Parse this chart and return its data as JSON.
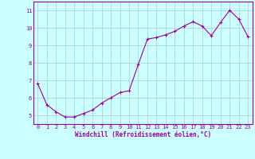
{
  "x": [
    0,
    1,
    2,
    3,
    4,
    5,
    6,
    7,
    8,
    9,
    10,
    11,
    12,
    13,
    14,
    15,
    16,
    17,
    18,
    19,
    20,
    21,
    22,
    23
  ],
  "y": [
    6.8,
    5.6,
    5.2,
    4.9,
    4.9,
    5.1,
    5.3,
    5.7,
    6.0,
    6.3,
    6.4,
    7.9,
    9.35,
    9.45,
    9.6,
    9.8,
    10.1,
    10.35,
    10.1,
    9.55,
    10.3,
    11.0,
    10.5,
    9.5
  ],
  "line_color": "#990099",
  "marker": "+",
  "marker_size": 3.5,
  "marker_linewidth": 0.8,
  "background_color": "#ccffff",
  "grid_color": "#aacccc",
  "xlabel": "Windchill (Refroidissement éolien,°C)",
  "ylim": [
    4.5,
    11.5
  ],
  "xlim": [
    -0.5,
    23.5
  ],
  "yticks": [
    5,
    6,
    7,
    8,
    9,
    10,
    11
  ],
  "xticks": [
    0,
    1,
    2,
    3,
    4,
    5,
    6,
    7,
    8,
    9,
    10,
    11,
    12,
    13,
    14,
    15,
    16,
    17,
    18,
    19,
    20,
    21,
    22,
    23
  ],
  "tick_color": "#990099",
  "label_color": "#990099",
  "spine_color": "#990099",
  "line_width": 0.8,
  "tick_fontsize": 5,
  "xlabel_fontsize": 5.5
}
